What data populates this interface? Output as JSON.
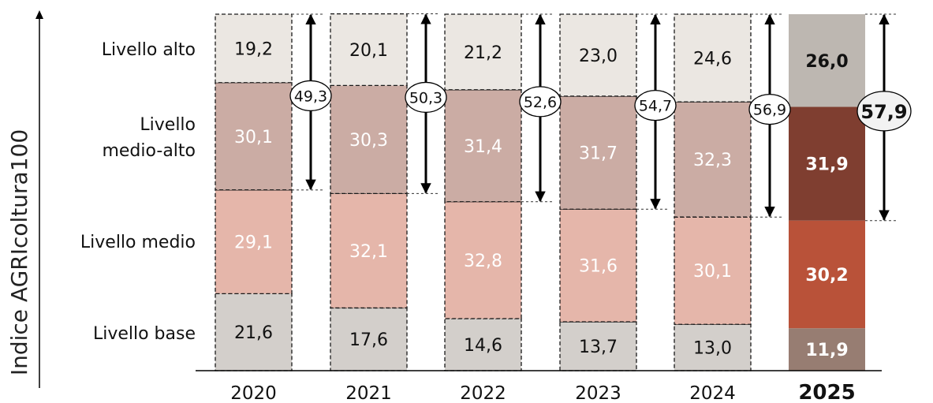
{
  "chart_data": {
    "type": "bar",
    "stacked": true,
    "orientation": "vertical",
    "ylabel": "Indice AGRIcoltura100",
    "categories": [
      "2020",
      "2021",
      "2022",
      "2023",
      "2024",
      "2025"
    ],
    "highlighted_category": "2025",
    "series": [
      {
        "name": "Livello base",
        "values": [
          21.6,
          17.6,
          14.6,
          13.7,
          13.0,
          11.9
        ],
        "labels": [
          "21,6",
          "17,6",
          "14,6",
          "13,7",
          "13,0",
          "11,9"
        ]
      },
      {
        "name": "Livello medio",
        "values": [
          29.1,
          32.1,
          32.8,
          31.6,
          30.1,
          30.2
        ],
        "labels": [
          "29,1",
          "32,1",
          "32,8",
          "31,6",
          "30,1",
          "30,2"
        ]
      },
      {
        "name": "Livello medio-alto",
        "values": [
          30.1,
          30.3,
          31.4,
          31.7,
          32.3,
          31.9
        ],
        "labels": [
          "30,1",
          "30,3",
          "31,4",
          "31,7",
          "32,3",
          "31,9"
        ]
      },
      {
        "name": "Livello alto",
        "values": [
          19.2,
          20.1,
          21.2,
          23.0,
          24.6,
          26.0
        ],
        "labels": [
          "19,2",
          "20,1",
          "21,2",
          "23,0",
          "24,6",
          "26,0"
        ]
      }
    ],
    "brackets": {
      "values": [
        49.3,
        50.3,
        52.6,
        54.7,
        56.9,
        57.9
      ],
      "labels": [
        "49,3",
        "50,3",
        "52,6",
        "54,7",
        "56,9",
        "57,9"
      ]
    },
    "category_axis_labels": [
      "Livello alto",
      "Livello medio-alto",
      "Livello medio",
      "Livello base"
    ],
    "ylim": [
      0,
      100
    ],
    "grid": false,
    "legend": "none",
    "colors": {
      "past": [
        "#d3cfcb",
        "#e5b6aa",
        "#cbaca4",
        "#ebe7e2"
      ],
      "highlight": [
        "#977d72",
        "#b95239",
        "#7f3e30",
        "#bdb7b1"
      ],
      "past_text": [
        "#111111",
        "#ffffff",
        "#ffffff",
        "#111111"
      ],
      "highlight_text": [
        "#ffffff",
        "#ffffff",
        "#ffffff",
        "#111111"
      ]
    }
  }
}
